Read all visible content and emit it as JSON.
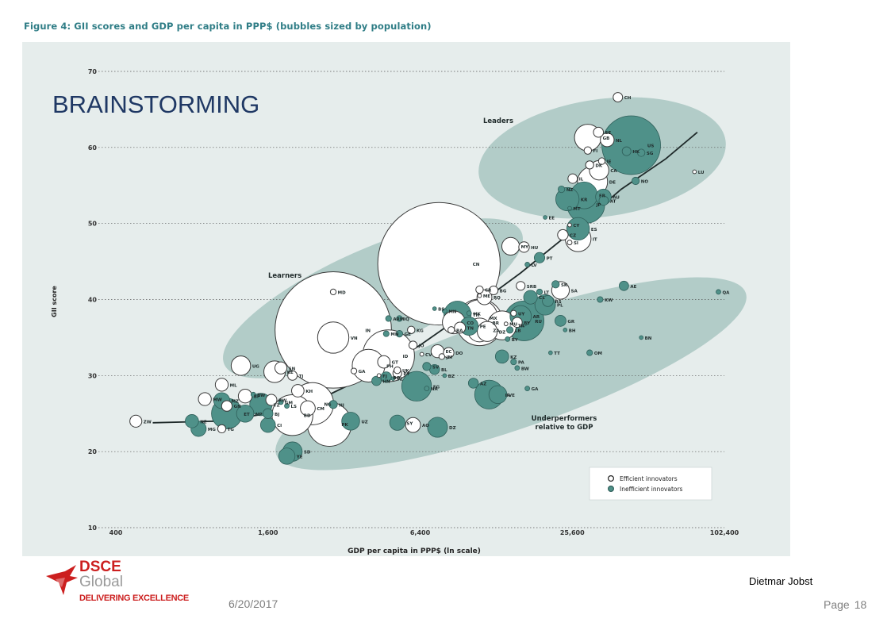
{
  "slide": {
    "heading": "BRAINSTORMING",
    "date": "6/20/2017",
    "author": "Dietmar Jobst",
    "page_label": "Page",
    "page_number": "18",
    "logo": {
      "line1": "DSCE",
      "line2": "Global",
      "tagline": "DELIVERING EXCELLENCE"
    }
  },
  "colors": {
    "teal": "#4f9189",
    "zone": "#b2ccc8",
    "panel": "#e6edec",
    "curve": "#1f2a2a",
    "title": "#2f7d86"
  },
  "chart_data": {
    "type": "scatter",
    "title": "Figure 4: GII scores and GDP per capita in PPP$ (bubbles sized by population)",
    "xlabel": "GDP per capita in PPP$ (ln scale)",
    "ylabel": "GII score",
    "x_scale": "log",
    "xlim": [
      400,
      102400
    ],
    "ylim": [
      10,
      70
    ],
    "xticks": [
      400,
      1600,
      6400,
      25600,
      102400
    ],
    "xtick_labels": [
      "400",
      "1,600",
      "6,400",
      "25,600",
      "102,400"
    ],
    "yticks": [
      10,
      20,
      30,
      40,
      50,
      60,
      70
    ],
    "grid": "horizontal dotted",
    "legend": {
      "position": "bottom-right",
      "items": [
        {
          "label": "Efficient innovators",
          "style": "hollow"
        },
        {
          "label": "Inefficient innovators",
          "style": "teal"
        }
      ]
    },
    "group_labels": [
      "Leaders",
      "Learners",
      "Underperformers relative to GDP"
    ],
    "trend_curve": [
      [
        560,
        23.8
      ],
      [
        1000,
        24.0
      ],
      [
        1600,
        25.0
      ],
      [
        2600,
        27.0
      ],
      [
        4000,
        30.0
      ],
      [
        6400,
        34.0
      ],
      [
        10000,
        38.5
      ],
      [
        16000,
        43.5
      ],
      [
        25600,
        49.0
      ],
      [
        40000,
        54.5
      ],
      [
        60000,
        58.5
      ],
      [
        80000,
        62.0
      ]
    ],
    "points": [
      {
        "label": "CH",
        "x": 38800,
        "y": 66.6,
        "pop": 8,
        "style": "hollow"
      },
      {
        "label": "SE",
        "x": 32500,
        "y": 62.0,
        "pop": 9,
        "style": "hollow"
      },
      {
        "label": "GB",
        "x": 29500,
        "y": 61.3,
        "pop": 64,
        "style": "hollow"
      },
      {
        "label": "NL",
        "x": 35200,
        "y": 61.0,
        "pop": 17,
        "style": "hollow"
      },
      {
        "label": "US",
        "x": 43800,
        "y": 60.3,
        "pop": 310,
        "style": "teal"
      },
      {
        "label": "HK",
        "x": 42000,
        "y": 59.5,
        "pop": 7,
        "style": "teal"
      },
      {
        "label": "SG",
        "x": 48000,
        "y": 59.3,
        "pop": 5,
        "style": "teal"
      },
      {
        "label": "FI",
        "x": 29500,
        "y": 59.6,
        "pop": 5,
        "style": "hollow"
      },
      {
        "label": "DK",
        "x": 30000,
        "y": 57.7,
        "pop": 6,
        "style": "hollow"
      },
      {
        "label": "IE",
        "x": 33500,
        "y": 58.2,
        "pop": 4,
        "style": "hollow"
      },
      {
        "label": "CA",
        "x": 32700,
        "y": 57.0,
        "pop": 34,
        "style": "hollow"
      },
      {
        "label": "LU",
        "x": 78000,
        "y": 56.8,
        "pop": 1,
        "style": "hollow"
      },
      {
        "label": "IL",
        "x": 25700,
        "y": 55.9,
        "pop": 8,
        "style": "hollow"
      },
      {
        "label": "DE",
        "x": 30800,
        "y": 55.5,
        "pop": 81,
        "style": "hollow"
      },
      {
        "label": "NO",
        "x": 45600,
        "y": 55.6,
        "pop": 5,
        "style": "teal"
      },
      {
        "label": "NZ",
        "x": 23200,
        "y": 54.5,
        "pop": 4,
        "style": "teal"
      },
      {
        "label": "FR",
        "x": 28500,
        "y": 53.7,
        "pop": 65,
        "style": "teal"
      },
      {
        "label": "AU",
        "x": 34000,
        "y": 53.5,
        "pop": 22,
        "style": "teal"
      },
      {
        "label": "KR",
        "x": 24500,
        "y": 53.2,
        "pop": 49,
        "style": "teal"
      },
      {
        "label": "AT",
        "x": 34100,
        "y": 53.0,
        "pop": 8,
        "style": "teal"
      },
      {
        "label": "JP",
        "x": 29000,
        "y": 52.5,
        "pop": 127,
        "style": "teal"
      },
      {
        "label": "MT",
        "x": 25000,
        "y": 52.0,
        "pop": 1,
        "style": "teal"
      },
      {
        "label": "EE",
        "x": 20000,
        "y": 50.8,
        "pop": 1,
        "style": "teal"
      },
      {
        "label": "CY",
        "x": 25000,
        "y": 49.8,
        "pop": 1,
        "style": "hollow"
      },
      {
        "label": "ES",
        "x": 27000,
        "y": 49.3,
        "pop": 46,
        "style": "teal"
      },
      {
        "label": "CZ",
        "x": 23500,
        "y": 48.5,
        "pop": 10,
        "style": "hollow"
      },
      {
        "label": "IT",
        "x": 27000,
        "y": 48.0,
        "pop": 60,
        "style": "hollow"
      },
      {
        "label": "SI",
        "x": 25000,
        "y": 47.5,
        "pop": 2,
        "style": "hollow"
      },
      {
        "label": "MY",
        "x": 14600,
        "y": 47.0,
        "pop": 28,
        "style": "hollow"
      },
      {
        "label": "HU",
        "x": 16500,
        "y": 46.9,
        "pop": 10,
        "style": "hollow"
      },
      {
        "label": "PT",
        "x": 19000,
        "y": 45.5,
        "pop": 10,
        "style": "teal"
      },
      {
        "label": "LV",
        "x": 17000,
        "y": 44.6,
        "pop": 2,
        "style": "teal"
      },
      {
        "label": "CN",
        "x": 7600,
        "y": 44.7,
        "pop": 1350,
        "style": "hollow"
      },
      {
        "label": "MD",
        "x": 2900,
        "y": 41.0,
        "pop": 3,
        "style": "hollow"
      },
      {
        "label": "CR",
        "x": 11000,
        "y": 41.3,
        "pop": 5,
        "style": "hollow"
      },
      {
        "label": "BG",
        "x": 12500,
        "y": 41.2,
        "pop": 7,
        "style": "hollow"
      },
      {
        "label": "SRB",
        "x": 16000,
        "y": 41.8,
        "pop": 7,
        "style": "hollow"
      },
      {
        "label": "SK",
        "x": 22000,
        "y": 42.0,
        "pop": 5,
        "style": "teal"
      },
      {
        "label": "SA",
        "x": 23000,
        "y": 41.2,
        "pop": 28,
        "style": "hollow"
      },
      {
        "label": "AE",
        "x": 41000,
        "y": 41.8,
        "pop": 8,
        "style": "teal"
      },
      {
        "label": "QA",
        "x": 97000,
        "y": 41.0,
        "pop": 2,
        "style": "teal"
      },
      {
        "label": "LT",
        "x": 19000,
        "y": 41.0,
        "pop": 3,
        "style": "teal"
      },
      {
        "label": "ME",
        "x": 11000,
        "y": 40.5,
        "pop": 1,
        "style": "hollow"
      },
      {
        "label": "RO",
        "x": 11500,
        "y": 40.3,
        "pop": 20,
        "style": "hollow"
      },
      {
        "label": "CL",
        "x": 17500,
        "y": 40.3,
        "pop": 17,
        "style": "teal"
      },
      {
        "label": "RS",
        "x": 20500,
        "y": 39.8,
        "pop": 11,
        "style": "teal"
      },
      {
        "label": "PL",
        "x": 20000,
        "y": 39.3,
        "pop": 38,
        "style": "teal"
      },
      {
        "label": "KW",
        "x": 33000,
        "y": 40.0,
        "pop": 3,
        "style": "teal"
      },
      {
        "label": "BS",
        "x": 7300,
        "y": 38.8,
        "pop": 1,
        "style": "teal"
      },
      {
        "label": "MN",
        "x": 8000,
        "y": 38.5,
        "pop": 2,
        "style": "teal"
      },
      {
        "label": "MK",
        "x": 10000,
        "y": 38.2,
        "pop": 2,
        "style": "teal"
      },
      {
        "label": "UY",
        "x": 15000,
        "y": 38.2,
        "pop": 3,
        "style": "hollow"
      },
      {
        "label": "TH",
        "x": 9000,
        "y": 38.0,
        "pop": 67,
        "style": "teal"
      },
      {
        "label": "AR",
        "x": 16000,
        "y": 37.8,
        "pop": 41,
        "style": "teal"
      },
      {
        "label": "BY",
        "x": 15500,
        "y": 37.0,
        "pop": 9,
        "style": "hollow"
      },
      {
        "label": "RU",
        "x": 16500,
        "y": 37.2,
        "pop": 143,
        "style": "teal"
      },
      {
        "label": "GR",
        "x": 23000,
        "y": 37.2,
        "pop": 11,
        "style": "teal"
      },
      {
        "label": "MX",
        "x": 11000,
        "y": 37.6,
        "pop": 118,
        "style": "hollow"
      },
      {
        "label": "BR",
        "x": 11000,
        "y": 37.0,
        "pop": 196,
        "style": "hollow"
      },
      {
        "label": "MU",
        "x": 14000,
        "y": 36.8,
        "pop": 1,
        "style": "hollow"
      },
      {
        "label": "TR",
        "x": 13500,
        "y": 36.6,
        "pop": 75,
        "style": "hollow"
      },
      {
        "label": "CO",
        "x": 8700,
        "y": 37.0,
        "pop": 47,
        "style": "hollow"
      },
      {
        "label": "PE",
        "x": 10000,
        "y": 36.5,
        "pop": 30,
        "style": "teal"
      },
      {
        "label": "TN",
        "x": 9200,
        "y": 36.3,
        "pop": 11,
        "style": "hollow"
      },
      {
        "label": "BA",
        "x": 8500,
        "y": 36.0,
        "pop": 4,
        "style": "hollow"
      },
      {
        "label": "LB",
        "x": 14500,
        "y": 36.0,
        "pop": 4,
        "style": "teal"
      },
      {
        "label": "ZA",
        "x": 11000,
        "y": 36.0,
        "pop": 51,
        "style": "hollow"
      },
      {
        "label": "KG",
        "x": 5900,
        "y": 36.0,
        "pop": 5,
        "style": "hollow"
      },
      {
        "label": "BH",
        "x": 24000,
        "y": 36.0,
        "pop": 1,
        "style": "teal"
      },
      {
        "label": "DZ",
        "x": 11800,
        "y": 35.8,
        "pop": 36,
        "style": "hollow"
      },
      {
        "label": "BY",
        "x": 14200,
        "y": 34.8,
        "pop": 2,
        "style": "teal"
      },
      {
        "label": "ARM",
        "x": 4800,
        "y": 37.5,
        "pop": 3,
        "style": "teal"
      },
      {
        "label": "IQ",
        "x": 5300,
        "y": 37.5,
        "pop": 3,
        "style": "teal"
      },
      {
        "label": "MN",
        "x": 4700,
        "y": 35.5,
        "pop": 3,
        "style": "teal"
      },
      {
        "label": "GE",
        "x": 5300,
        "y": 35.5,
        "pop": 4,
        "style": "teal"
      },
      {
        "label": "BN",
        "x": 48000,
        "y": 35.0,
        "pop": 1,
        "style": "teal"
      },
      {
        "label": "IN",
        "x": 2900,
        "y": 36.0,
        "pop": 1220,
        "style": "hollow"
      },
      {
        "label": "VN",
        "x": 2900,
        "y": 35.0,
        "pop": 88,
        "style": "hollow"
      },
      {
        "label": "JO",
        "x": 6000,
        "y": 34.0,
        "pop": 6,
        "style": "hollow"
      },
      {
        "label": "ID",
        "x": 4800,
        "y": 32.6,
        "pop": 242,
        "style": "hollow"
      },
      {
        "label": "EC",
        "x": 7500,
        "y": 33.2,
        "pop": 15,
        "style": "hollow"
      },
      {
        "label": "CV",
        "x": 6500,
        "y": 32.8,
        "pop": 1,
        "style": "hollow"
      },
      {
        "label": "DO",
        "x": 8300,
        "y": 33.0,
        "pop": 10,
        "style": "hollow"
      },
      {
        "label": "JM",
        "x": 7800,
        "y": 32.5,
        "pop": 3,
        "style": "hollow"
      },
      {
        "label": "KZ",
        "x": 13500,
        "y": 32.5,
        "pop": 16,
        "style": "teal"
      },
      {
        "label": "TT",
        "x": 21000,
        "y": 33.0,
        "pop": 1,
        "style": "teal"
      },
      {
        "label": "OM",
        "x": 30000,
        "y": 33.0,
        "pop": 3,
        "style": "teal"
      },
      {
        "label": "PA",
        "x": 15000,
        "y": 31.8,
        "pop": 3,
        "style": "teal"
      },
      {
        "label": "BW",
        "x": 15500,
        "y": 31.0,
        "pop": 2,
        "style": "teal"
      },
      {
        "label": "GT",
        "x": 4600,
        "y": 31.8,
        "pop": 14,
        "style": "hollow"
      },
      {
        "label": "PH",
        "x": 4000,
        "y": 31.3,
        "pop": 96,
        "style": "hollow"
      },
      {
        "label": "UK",
        "x": 5200,
        "y": 30.7,
        "pop": 4,
        "style": "hollow"
      },
      {
        "label": "SV",
        "x": 6800,
        "y": 31.2,
        "pop": 6,
        "style": "teal"
      },
      {
        "label": "BL",
        "x": 7300,
        "y": 30.8,
        "pop": 9,
        "style": "teal"
      },
      {
        "label": "GA",
        "x": 3500,
        "y": 30.6,
        "pop": 3,
        "style": "hollow"
      },
      {
        "label": "PY",
        "x": 5200,
        "y": 30.3,
        "pop": 7,
        "style": "hollow"
      },
      {
        "label": "BZ",
        "x": 8000,
        "y": 30.0,
        "pop": 1,
        "style": "teal"
      },
      {
        "label": "FJ",
        "x": 4400,
        "y": 30.0,
        "pop": 1,
        "style": "hollow"
      },
      {
        "label": "BO",
        "x": 4700,
        "y": 29.8,
        "pop": 10,
        "style": "teal"
      },
      {
        "label": "SZ",
        "x": 5000,
        "y": 29.6,
        "pop": 1,
        "style": "teal"
      },
      {
        "label": "HN",
        "x": 4300,
        "y": 29.3,
        "pop": 8,
        "style": "teal"
      },
      {
        "label": "NA",
        "x": 6800,
        "y": 28.3,
        "pop": 2,
        "style": "teal"
      },
      {
        "label": "EG",
        "x": 6200,
        "y": 28.6,
        "pop": 80,
        "style": "teal"
      },
      {
        "label": "AZ",
        "x": 10400,
        "y": 29.0,
        "pop": 9,
        "style": "teal"
      },
      {
        "label": "VE",
        "x": 13000,
        "y": 27.5,
        "pop": 29,
        "style": "teal"
      },
      {
        "label": "IR",
        "x": 12000,
        "y": 27.5,
        "pop": 75,
        "style": "teal"
      },
      {
        "label": "GA",
        "x": 17000,
        "y": 28.3,
        "pop": 2,
        "style": "teal"
      },
      {
        "label": "UG",
        "x": 1250,
        "y": 31.3,
        "pop": 34,
        "style": "hollow"
      },
      {
        "label": "KE",
        "x": 1700,
        "y": 30.5,
        "pop": 42,
        "style": "hollow"
      },
      {
        "label": "SN",
        "x": 1800,
        "y": 31.0,
        "pop": 13,
        "style": "hollow"
      },
      {
        "label": "TJ",
        "x": 2000,
        "y": 30.0,
        "pop": 8,
        "style": "hollow"
      },
      {
        "label": "ML",
        "x": 1050,
        "y": 28.8,
        "pop": 15,
        "style": "hollow"
      },
      {
        "label": "KH",
        "x": 2100,
        "y": 28.0,
        "pop": 14,
        "style": "hollow"
      },
      {
        "label": "NG",
        "x": 2400,
        "y": 26.3,
        "pop": 160,
        "style": "hollow"
      },
      {
        "label": "BF",
        "x": 1300,
        "y": 27.3,
        "pop": 17,
        "style": "hollow"
      },
      {
        "label": "BW",
        "x": 1400,
        "y": 27.5,
        "pop": 2,
        "style": "teal"
      },
      {
        "label": "MZ",
        "x": 1050,
        "y": 26.7,
        "pop": 23,
        "style": "teal"
      },
      {
        "label": "GN",
        "x": 1100,
        "y": 26.0,
        "pop": 10,
        "style": "hollow"
      },
      {
        "label": "TZ",
        "x": 1500,
        "y": 26.2,
        "pop": 45,
        "style": "teal"
      },
      {
        "label": "GM",
        "x": 1800,
        "y": 26.5,
        "pop": 2,
        "style": "teal"
      },
      {
        "label": "LS",
        "x": 1900,
        "y": 26.0,
        "pop": 2,
        "style": "teal"
      },
      {
        "label": "RW",
        "x": 1650,
        "y": 26.8,
        "pop": 11,
        "style": "hollow"
      },
      {
        "label": "CM",
        "x": 2300,
        "y": 25.7,
        "pop": 20,
        "style": "hollow"
      },
      {
        "label": "NI",
        "x": 2900,
        "y": 26.2,
        "pop": 6,
        "style": "teal"
      },
      {
        "label": "MW",
        "x": 900,
        "y": 26.9,
        "pop": 15,
        "style": "hollow"
      },
      {
        "label": "ET",
        "x": 1100,
        "y": 25.0,
        "pop": 85,
        "style": "teal"
      },
      {
        "label": "NP",
        "x": 1300,
        "y": 25.0,
        "pop": 27,
        "style": "teal"
      },
      {
        "label": "BJ",
        "x": 1600,
        "y": 25.0,
        "pop": 9,
        "style": "teal"
      },
      {
        "label": "BD",
        "x": 2000,
        "y": 24.8,
        "pop": 150,
        "style": "hollow"
      },
      {
        "label": "PK",
        "x": 2800,
        "y": 23.6,
        "pop": 175,
        "style": "hollow"
      },
      {
        "label": "CI",
        "x": 1600,
        "y": 23.5,
        "pop": 20,
        "style": "teal"
      },
      {
        "label": "UZ",
        "x": 3400,
        "y": 24.0,
        "pop": 29,
        "style": "teal"
      },
      {
        "label": "SY",
        "x": 5200,
        "y": 23.8,
        "pop": 21,
        "style": "teal"
      },
      {
        "label": "AO",
        "x": 6000,
        "y": 23.5,
        "pop": 20,
        "style": "hollow"
      },
      {
        "label": "DZ",
        "x": 7500,
        "y": 23.2,
        "pop": 36,
        "style": "teal"
      },
      {
        "label": "ZW",
        "x": 480,
        "y": 24.0,
        "pop": 13,
        "style": "hollow"
      },
      {
        "label": "NE",
        "x": 800,
        "y": 24.0,
        "pop": 16,
        "style": "teal"
      },
      {
        "label": "MG",
        "x": 850,
        "y": 23.0,
        "pop": 21,
        "style": "teal"
      },
      {
        "label": "TG",
        "x": 1050,
        "y": 23.0,
        "pop": 6,
        "style": "hollow"
      },
      {
        "label": "SD",
        "x": 2000,
        "y": 20.0,
        "pop": 34,
        "style": "teal"
      },
      {
        "label": "YE",
        "x": 1900,
        "y": 19.4,
        "pop": 24,
        "style": "teal"
      }
    ]
  }
}
